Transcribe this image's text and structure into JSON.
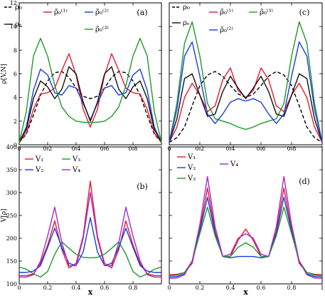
{
  "chart_data": [
    {
      "panel_label": "(a)",
      "type": "line",
      "xlim": [
        0,
        1
      ],
      "ylim": [
        0,
        12
      ],
      "xticks": [
        "0",
        "0.2",
        "0.4",
        "0.6",
        "0.8"
      ],
      "yticks": [
        "0",
        "2",
        "4",
        "6",
        "8",
        "10",
        "12"
      ],
      "ylabel": "ρ[V,N]",
      "xlabel": "",
      "legend": [
        "ρ₀",
        "ρ̃₀⁽¹⁾",
        "ρ̃₀⁽²⁾",
        "ρₑ",
        "ρ̃₀⁽³⁾"
      ],
      "series": [
        {
          "name": "ρ₀",
          "color": "#000000",
          "dash": true,
          "x": [
            0,
            0.05,
            0.1,
            0.15,
            0.2,
            0.25,
            0.3,
            0.35,
            0.4,
            0.45,
            0.5,
            0.55,
            0.6,
            0.65,
            0.7,
            0.75,
            0.8,
            0.85,
            0.9,
            0.95,
            1
          ],
          "y": [
            0.2,
            0.9,
            2.5,
            4.2,
            5.4,
            6.1,
            6.2,
            5.7,
            4.8,
            4.1,
            3.9,
            4.1,
            4.8,
            5.7,
            6.2,
            6.1,
            5.4,
            4.2,
            2.5,
            0.9,
            0.2
          ]
        },
        {
          "name": "ρ̃₀⁽¹⁾",
          "color": "#e8192c",
          "x": [
            0,
            0.05,
            0.1,
            0.15,
            0.2,
            0.25,
            0.3,
            0.35,
            0.4,
            0.45,
            0.5,
            0.55,
            0.6,
            0.65,
            0.7,
            0.75,
            0.8,
            0.85,
            0.9,
            0.95,
            1
          ],
          "y": [
            0.2,
            1.0,
            3.0,
            4.3,
            4.4,
            4.8,
            6.3,
            7.7,
            5.9,
            3.0,
            1.5,
            3.0,
            5.9,
            7.7,
            6.3,
            4.8,
            4.4,
            4.3,
            3.0,
            1.0,
            0.2
          ]
        },
        {
          "name": "ρ̃₀⁽²⁾",
          "color": "#1a3de0",
          "x": [
            0,
            0.05,
            0.1,
            0.15,
            0.2,
            0.25,
            0.3,
            0.35,
            0.4,
            0.45,
            0.5,
            0.55,
            0.6,
            0.65,
            0.7,
            0.75,
            0.8,
            0.85,
            0.9,
            0.95,
            1
          ],
          "y": [
            0.2,
            1.5,
            4.6,
            6.4,
            5.9,
            4.4,
            4.2,
            5.0,
            4.8,
            3.5,
            2.1,
            3.5,
            4.8,
            5.0,
            4.2,
            4.4,
            5.9,
            6.4,
            4.6,
            1.5,
            0.2
          ]
        },
        {
          "name": "ρₑ",
          "color": "#111111",
          "x": [
            0,
            0.05,
            0.1,
            0.15,
            0.2,
            0.25,
            0.3,
            0.35,
            0.4,
            0.45,
            0.5,
            0.55,
            0.6,
            0.65,
            0.7,
            0.75,
            0.8,
            0.85,
            0.9,
            0.95,
            1
          ],
          "y": [
            0.2,
            1.3,
            3.9,
            5.4,
            4.9,
            3.9,
            4.7,
            6.6,
            6.0,
            3.6,
            2.0,
            3.6,
            6.0,
            6.6,
            4.7,
            3.9,
            4.9,
            5.4,
            3.9,
            1.3,
            0.2
          ]
        },
        {
          "name": "ρ̃₀⁽³⁾",
          "color": "#1f9a2a",
          "x": [
            0,
            0.05,
            0.1,
            0.15,
            0.2,
            0.25,
            0.3,
            0.35,
            0.4,
            0.45,
            0.5,
            0.55,
            0.6,
            0.65,
            0.7,
            0.75,
            0.8,
            0.85,
            0.9,
            0.95,
            1
          ],
          "y": [
            0.2,
            2.8,
            7.5,
            9.0,
            7.5,
            5.0,
            3.2,
            2.4,
            2.0,
            1.9,
            1.9,
            1.9,
            2.0,
            2.4,
            3.2,
            5.0,
            7.5,
            9.0,
            7.5,
            2.8,
            0.2
          ]
        }
      ]
    },
    {
      "panel_label": "(c)",
      "type": "line",
      "xlim": [
        0,
        1
      ],
      "ylim": [
        0,
        12
      ],
      "xticks": [
        "0",
        "0.2",
        "0.4",
        "0.6",
        "0.8",
        "1"
      ],
      "yticks": [],
      "ylabel": "",
      "xlabel": "",
      "legend": [
        "ρ₀",
        "ρ̃₀⁽¹⁾",
        "ρ̃₀⁽³⁾",
        "ρₑ",
        "ρ̃₀⁽²⁾"
      ],
      "series": [
        {
          "name": "ρ₀",
          "color": "#000000",
          "dash": true,
          "x": [
            0,
            0.05,
            0.1,
            0.15,
            0.2,
            0.25,
            0.3,
            0.35,
            0.4,
            0.45,
            0.5,
            0.55,
            0.6,
            0.65,
            0.7,
            0.75,
            0.8,
            0.85,
            0.9,
            0.95,
            1
          ],
          "y": [
            0.2,
            0.6,
            1.5,
            3.3,
            5.0,
            5.9,
            6.2,
            5.8,
            5.0,
            4.3,
            4.0,
            4.3,
            5.0,
            5.8,
            6.2,
            5.9,
            5.0,
            3.3,
            1.5,
            0.6,
            0.2
          ]
        },
        {
          "name": "ρ̃₀⁽¹⁾",
          "color": "#e8192c",
          "x": [
            0,
            0.05,
            0.1,
            0.15,
            0.2,
            0.25,
            0.3,
            0.35,
            0.4,
            0.45,
            0.5,
            0.55,
            0.6,
            0.65,
            0.7,
            0.75,
            0.8,
            0.85,
            0.9,
            0.95,
            1
          ],
          "y": [
            0.2,
            1.5,
            4.0,
            5.2,
            4.2,
            2.8,
            3.3,
            5.5,
            6.5,
            4.6,
            4.0,
            4.6,
            6.5,
            5.5,
            3.3,
            2.8,
            4.2,
            5.2,
            4.0,
            1.5,
            0.2
          ]
        },
        {
          "name": "ρ̃₀⁽³⁾",
          "color": "#1f9a2a",
          "x": [
            0,
            0.05,
            0.1,
            0.15,
            0.2,
            0.25,
            0.3,
            0.35,
            0.4,
            0.45,
            0.5,
            0.55,
            0.6,
            0.65,
            0.7,
            0.75,
            0.8,
            0.85,
            0.9,
            0.95,
            1
          ],
          "y": [
            0.2,
            3.5,
            8.6,
            10.4,
            7.5,
            3.5,
            2.2,
            2.0,
            1.8,
            1.5,
            1.3,
            1.5,
            1.8,
            2.0,
            2.2,
            3.5,
            7.5,
            10.4,
            8.6,
            3.5,
            0.2
          ]
        },
        {
          "name": "ρₑ",
          "color": "#111111",
          "x": [
            0,
            0.05,
            0.1,
            0.15,
            0.2,
            0.25,
            0.3,
            0.35,
            0.4,
            0.45,
            0.5,
            0.55,
            0.6,
            0.65,
            0.7,
            0.75,
            0.8,
            0.85,
            0.9,
            0.95,
            1
          ],
          "y": [
            0.2,
            2.2,
            5.6,
            6.0,
            4.2,
            2.4,
            2.6,
            4.5,
            5.8,
            4.8,
            3.9,
            4.8,
            5.8,
            4.5,
            2.6,
            2.4,
            4.2,
            6.0,
            5.6,
            2.2,
            0.2
          ]
        },
        {
          "name": "ρ̃₀⁽²⁾",
          "color": "#1a3de0",
          "x": [
            0,
            0.05,
            0.1,
            0.15,
            0.2,
            0.25,
            0.3,
            0.35,
            0.4,
            0.45,
            0.5,
            0.55,
            0.6,
            0.65,
            0.7,
            0.75,
            0.8,
            0.85,
            0.9,
            0.95,
            1
          ],
          "y": [
            0.2,
            3.0,
            7.5,
            8.7,
            5.8,
            2.6,
            1.8,
            2.6,
            3.6,
            3.9,
            3.7,
            3.9,
            3.6,
            2.6,
            1.8,
            2.6,
            5.8,
            8.7,
            7.5,
            3.0,
            0.2
          ]
        }
      ]
    },
    {
      "panel_label": "(b)",
      "type": "line",
      "xlim": [
        0,
        1
      ],
      "ylim": [
        100,
        400
      ],
      "xticks": [
        "0",
        "0.2",
        "0.4",
        "0.6",
        "0.8"
      ],
      "yticks": [
        "100",
        "150",
        "200",
        "250",
        "300",
        "350",
        "400"
      ],
      "ylabel": "V[ρ]",
      "xlabel": "x",
      "legend": [
        "V₁",
        "V₃",
        "V₂",
        "V₄"
      ],
      "series": [
        {
          "name": "V₁",
          "color": "#e8192c",
          "x": [
            0,
            0.05,
            0.1,
            0.15,
            0.2,
            0.25,
            0.3,
            0.35,
            0.4,
            0.45,
            0.5,
            0.55,
            0.6,
            0.65,
            0.7,
            0.75,
            0.8,
            0.85,
            0.9,
            0.95,
            1
          ],
          "y": [
            118,
            118,
            122,
            145,
            185,
            238,
            175,
            135,
            145,
            205,
            325,
            205,
            145,
            135,
            175,
            238,
            185,
            145,
            122,
            118,
            118
          ]
        },
        {
          "name": "V₃",
          "color": "#1f9a2a",
          "x": [
            0,
            0.05,
            0.1,
            0.15,
            0.2,
            0.25,
            0.3,
            0.35,
            0.4,
            0.45,
            0.5,
            0.55,
            0.6,
            0.65,
            0.7,
            0.75,
            0.8,
            0.85,
            0.9,
            0.95,
            1
          ],
          "y": [
            137,
            132,
            122,
            115,
            127,
            165,
            192,
            178,
            165,
            158,
            157,
            158,
            165,
            178,
            192,
            165,
            127,
            115,
            122,
            132,
            137
          ]
        },
        {
          "name": "V₂",
          "color": "#1a3de0",
          "x": [
            0,
            0.05,
            0.1,
            0.15,
            0.2,
            0.25,
            0.3,
            0.35,
            0.4,
            0.45,
            0.5,
            0.55,
            0.6,
            0.65,
            0.7,
            0.75,
            0.8,
            0.85,
            0.9,
            0.95,
            1
          ],
          "y": [
            125,
            125,
            128,
            140,
            180,
            222,
            180,
            145,
            140,
            170,
            245,
            170,
            140,
            145,
            180,
            222,
            180,
            140,
            128,
            125,
            125
          ]
        },
        {
          "name": "V₄",
          "color": "#a02bd0",
          "x": [
            0,
            0.05,
            0.1,
            0.15,
            0.2,
            0.25,
            0.3,
            0.35,
            0.4,
            0.45,
            0.5,
            0.55,
            0.6,
            0.65,
            0.7,
            0.75,
            0.8,
            0.85,
            0.9,
            0.95,
            1
          ],
          "y": [
            115,
            115,
            120,
            150,
            205,
            268,
            190,
            140,
            140,
            200,
            300,
            200,
            140,
            140,
            190,
            268,
            205,
            150,
            120,
            115,
            115
          ]
        }
      ]
    },
    {
      "panel_label": "(d)",
      "type": "line",
      "xlim": [
        0,
        1
      ],
      "ylim": [
        100,
        400
      ],
      "xticks": [
        "0",
        "0.2",
        "0.4",
        "0.6",
        "0.8",
        "1"
      ],
      "yticks": [],
      "ylabel": "",
      "xlabel": "x",
      "legend": [
        "V₁",
        "V₂",
        "V₃",
        "V₄"
      ],
      "series": [
        {
          "name": "V₁",
          "color": "#e8192c",
          "x": [
            0,
            0.05,
            0.1,
            0.15,
            0.2,
            0.25,
            0.3,
            0.35,
            0.4,
            0.45,
            0.5,
            0.55,
            0.6,
            0.65,
            0.7,
            0.75,
            0.8,
            0.85,
            0.9,
            0.95,
            1
          ],
          "y": [
            120,
            121,
            125,
            145,
            220,
            310,
            215,
            160,
            160,
            195,
            220,
            195,
            160,
            160,
            215,
            310,
            220,
            145,
            125,
            121,
            120
          ]
        },
        {
          "name": "V₂",
          "color": "#1a3de0",
          "x": [
            0,
            0.05,
            0.1,
            0.15,
            0.2,
            0.25,
            0.3,
            0.35,
            0.4,
            0.45,
            0.5,
            0.55,
            0.6,
            0.65,
            0.7,
            0.75,
            0.8,
            0.85,
            0.9,
            0.95,
            1
          ],
          "y": [
            115,
            116,
            122,
            150,
            215,
            290,
            210,
            160,
            157,
            160,
            160,
            160,
            157,
            160,
            210,
            290,
            215,
            150,
            122,
            116,
            115
          ]
        },
        {
          "name": "V₃",
          "color": "#1f9a2a",
          "x": [
            0,
            0.05,
            0.1,
            0.15,
            0.2,
            0.25,
            0.3,
            0.35,
            0.4,
            0.45,
            0.5,
            0.55,
            0.6,
            0.65,
            0.7,
            0.75,
            0.8,
            0.85,
            0.9,
            0.95,
            1
          ],
          "y": [
            118,
            119,
            125,
            150,
            210,
            268,
            205,
            160,
            160,
            180,
            190,
            180,
            160,
            160,
            205,
            268,
            210,
            150,
            125,
            119,
            118
          ]
        },
        {
          "name": "V₄",
          "color": "#a02bd0",
          "x": [
            0,
            0.05,
            0.1,
            0.15,
            0.2,
            0.25,
            0.3,
            0.35,
            0.4,
            0.45,
            0.5,
            0.55,
            0.6,
            0.65,
            0.7,
            0.75,
            0.8,
            0.85,
            0.9,
            0.95,
            1
          ],
          "y": [
            112,
            113,
            120,
            150,
            230,
            335,
            225,
            160,
            165,
            200,
            210,
            200,
            165,
            160,
            225,
            335,
            230,
            150,
            120,
            113,
            112
          ]
        }
      ]
    }
  ]
}
